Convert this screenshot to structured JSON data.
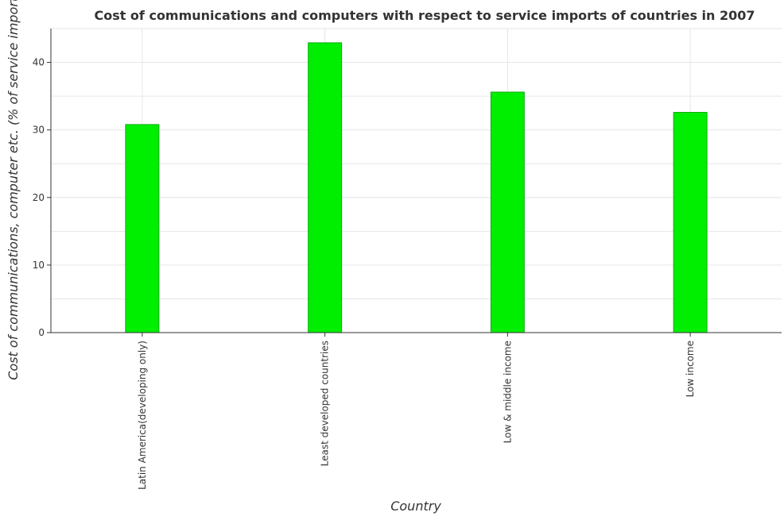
{
  "chart_data": {
    "type": "bar",
    "title": "Cost of communications and computers with respect to service imports of countries in 2007",
    "xlabel": "Country",
    "ylabel": "Cost of communications, computer etc. (% of service imports)",
    "categories": [
      "Latin America(developing only)",
      "Least developed countries",
      "Low & middle income",
      "Low income"
    ],
    "values": [
      30.8,
      42.9,
      35.6,
      32.6
    ],
    "ylim": [
      0,
      45
    ],
    "yticks": [
      "0",
      "10",
      "20",
      "30",
      "40"
    ],
    "grid": true,
    "bar_color": "#00ee00",
    "bar_edge_color": "#11aa11"
  }
}
